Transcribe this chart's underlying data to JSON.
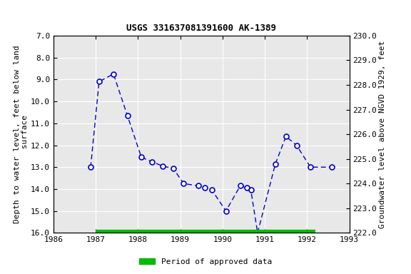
{
  "title": "USGS 331637081391600 AK-1389",
  "ylabel_left": "Depth to water level, feet below land\n surface",
  "ylabel_right": "Groundwater level above NGVD 1929, feet",
  "xlim": [
    1986,
    1993
  ],
  "ylim_left": [
    7.0,
    16.0
  ],
  "ylim_right": [
    222.0,
    230.0
  ],
  "xticks": [
    1986,
    1987,
    1988,
    1989,
    1990,
    1991,
    1992,
    1993
  ],
  "yticks_left": [
    7.0,
    8.0,
    9.0,
    10.0,
    11.0,
    12.0,
    13.0,
    14.0,
    15.0,
    16.0
  ],
  "yticks_right": [
    222.0,
    223.0,
    224.0,
    225.0,
    226.0,
    227.0,
    228.0,
    229.0,
    230.0
  ],
  "x_data": [
    1986.88,
    1987.08,
    1987.42,
    1987.75,
    1988.08,
    1988.33,
    1988.58,
    1988.83,
    1989.08,
    1989.42,
    1989.58,
    1989.75,
    1990.08,
    1990.42,
    1990.58,
    1990.67,
    1990.83,
    1991.25,
    1991.5,
    1991.75,
    1992.08,
    1992.58
  ],
  "y_data": [
    13.0,
    9.1,
    8.75,
    10.65,
    12.55,
    12.75,
    12.95,
    13.05,
    13.75,
    13.85,
    13.95,
    14.05,
    15.0,
    13.85,
    13.95,
    14.05,
    16.0,
    12.85,
    11.6,
    12.0,
    13.0,
    13.0
  ],
  "line_color": "#0000cc",
  "marker_color": "#0000cc",
  "marker_face": "#ffffff",
  "legend_label": "Period of approved data",
  "legend_color": "#00bb00",
  "bar_x_start": 1987.0,
  "bar_x_end": 1992.2,
  "bar_y": 16.0,
  "background_color": "#ffffff",
  "plot_bg_color": "#e8e8e8",
  "grid_color": "#ffffff",
  "title_fontsize": 9,
  "label_fontsize": 8,
  "tick_fontsize": 8
}
